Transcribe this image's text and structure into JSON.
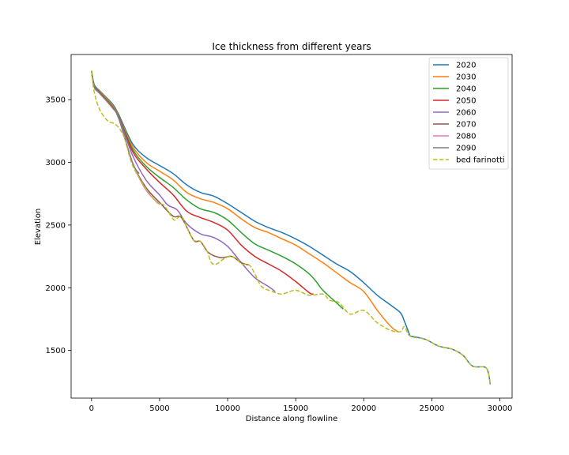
{
  "chart_data": {
    "type": "line",
    "title": "Ice thickness from different years",
    "xlabel": "Distance along flowline",
    "ylabel": "Elevation",
    "xlim": [
      -1500,
      30900
    ],
    "ylim": [
      1120,
      3860
    ],
    "xticks": [
      0,
      5000,
      10000,
      15000,
      20000,
      25000,
      30000
    ],
    "yticks": [
      1500,
      2000,
      2500,
      3000,
      3500
    ],
    "grid": false,
    "legend_position": "top-right",
    "bed_tail": [
      [
        23400,
        1615
      ],
      [
        24500,
        1590
      ],
      [
        25500,
        1535
      ],
      [
        26500,
        1510
      ],
      [
        27300,
        1460
      ],
      [
        28000,
        1375
      ],
      [
        29000,
        1360
      ],
      [
        29300,
        1230
      ]
    ],
    "series": [
      {
        "name": "2020",
        "color": "#1f77b4",
        "dash": false,
        "points": [
          [
            0,
            3730
          ],
          [
            200,
            3620
          ],
          [
            600,
            3570
          ],
          [
            1500,
            3470
          ],
          [
            2000,
            3380
          ],
          [
            3000,
            3150
          ],
          [
            4000,
            3040
          ],
          [
            5000,
            2975
          ],
          [
            6000,
            2910
          ],
          [
            7000,
            2820
          ],
          [
            8000,
            2760
          ],
          [
            9000,
            2730
          ],
          [
            10000,
            2670
          ],
          [
            11000,
            2600
          ],
          [
            12000,
            2530
          ],
          [
            13000,
            2480
          ],
          [
            14000,
            2440
          ],
          [
            15000,
            2390
          ],
          [
            16000,
            2330
          ],
          [
            17000,
            2260
          ],
          [
            18000,
            2190
          ],
          [
            19000,
            2130
          ],
          [
            20000,
            2040
          ],
          [
            21000,
            1940
          ],
          [
            22000,
            1860
          ],
          [
            22700,
            1800
          ],
          [
            23000,
            1730
          ],
          [
            23400,
            1615
          ]
        ]
      },
      {
        "name": "2030",
        "color": "#ff7f0e",
        "dash": false,
        "points": [
          [
            0,
            3730
          ],
          [
            200,
            3610
          ],
          [
            600,
            3565
          ],
          [
            1500,
            3460
          ],
          [
            2000,
            3370
          ],
          [
            3000,
            3130
          ],
          [
            4000,
            3000
          ],
          [
            5000,
            2930
          ],
          [
            6000,
            2860
          ],
          [
            7000,
            2760
          ],
          [
            8000,
            2710
          ],
          [
            9000,
            2680
          ],
          [
            10000,
            2630
          ],
          [
            11000,
            2550
          ],
          [
            12000,
            2480
          ],
          [
            13000,
            2440
          ],
          [
            14000,
            2390
          ],
          [
            15000,
            2340
          ],
          [
            16000,
            2270
          ],
          [
            17000,
            2200
          ],
          [
            18000,
            2120
          ],
          [
            19000,
            2040
          ],
          [
            20000,
            1970
          ],
          [
            21000,
            1820
          ],
          [
            22000,
            1690
          ],
          [
            22500,
            1650
          ]
        ]
      },
      {
        "name": "2040",
        "color": "#2ca02c",
        "dash": false,
        "points": [
          [
            0,
            3730
          ],
          [
            200,
            3610
          ],
          [
            600,
            3560
          ],
          [
            1500,
            3450
          ],
          [
            2000,
            3365
          ],
          [
            3000,
            3110
          ],
          [
            4000,
            2970
          ],
          [
            5000,
            2880
          ],
          [
            6000,
            2800
          ],
          [
            7000,
            2700
          ],
          [
            8000,
            2630
          ],
          [
            9000,
            2600
          ],
          [
            10000,
            2540
          ],
          [
            11000,
            2440
          ],
          [
            12000,
            2350
          ],
          [
            13000,
            2300
          ],
          [
            14000,
            2250
          ],
          [
            15000,
            2190
          ],
          [
            16000,
            2110
          ],
          [
            16500,
            2050
          ],
          [
            17000,
            1980
          ],
          [
            18000,
            1880
          ],
          [
            18500,
            1830
          ]
        ]
      },
      {
        "name": "2050",
        "color": "#d62728",
        "dash": false,
        "points": [
          [
            0,
            3730
          ],
          [
            200,
            3605
          ],
          [
            600,
            3555
          ],
          [
            1500,
            3445
          ],
          [
            2000,
            3360
          ],
          [
            3000,
            3090
          ],
          [
            4000,
            2950
          ],
          [
            5000,
            2840
          ],
          [
            6000,
            2740
          ],
          [
            7000,
            2610
          ],
          [
            8000,
            2560
          ],
          [
            9000,
            2520
          ],
          [
            10000,
            2460
          ],
          [
            11000,
            2340
          ],
          [
            12000,
            2250
          ],
          [
            13000,
            2190
          ],
          [
            14000,
            2130
          ],
          [
            15000,
            2050
          ],
          [
            16000,
            1960
          ],
          [
            16300,
            1950
          ]
        ]
      },
      {
        "name": "2060",
        "color": "#9467bd",
        "dash": false,
        "points": [
          [
            0,
            3730
          ],
          [
            200,
            3600
          ],
          [
            600,
            3550
          ],
          [
            1500,
            3440
          ],
          [
            2000,
            3355
          ],
          [
            3000,
            3060
          ],
          [
            4000,
            2860
          ],
          [
            5000,
            2740
          ],
          [
            5600,
            2660
          ],
          [
            6300,
            2620
          ],
          [
            7000,
            2510
          ],
          [
            8000,
            2430
          ],
          [
            9000,
            2400
          ],
          [
            10000,
            2330
          ],
          [
            11000,
            2200
          ],
          [
            12000,
            2080
          ],
          [
            13000,
            2010
          ],
          [
            13500,
            1970
          ]
        ]
      },
      {
        "name": "2070",
        "color": "#8c564b",
        "dash": false,
        "points": [
          [
            0,
            3730
          ],
          [
            200,
            3600
          ],
          [
            600,
            3550
          ],
          [
            1500,
            3440
          ],
          [
            2000,
            3350
          ],
          [
            3000,
            3000
          ],
          [
            4000,
            2800
          ],
          [
            5000,
            2680
          ],
          [
            6000,
            2570
          ],
          [
            6600,
            2560
          ],
          [
            7500,
            2380
          ],
          [
            8000,
            2370
          ],
          [
            8600,
            2280
          ],
          [
            9500,
            2240
          ],
          [
            10300,
            2250
          ],
          [
            11000,
            2200
          ],
          [
            11600,
            2180
          ]
        ]
      },
      {
        "name": "2080",
        "color": "#e377c2",
        "dash": false,
        "points": [
          [
            0,
            3730
          ],
          [
            200,
            3600
          ],
          [
            600,
            3550
          ],
          [
            1500,
            3440
          ],
          [
            2000,
            3350
          ],
          [
            3000,
            3000
          ],
          [
            4000,
            2780
          ],
          [
            5000,
            2665
          ]
        ]
      },
      {
        "name": "2090",
        "color": "#7f7f7f",
        "dash": false,
        "points": [
          [
            0,
            3730
          ],
          [
            200,
            3600
          ],
          [
            600,
            3550
          ],
          [
            1500,
            3440
          ],
          [
            2000,
            3350
          ],
          [
            3000,
            3000
          ],
          [
            3500,
            2910
          ]
        ]
      },
      {
        "name": "bed farinotti",
        "color": "#bcbd22",
        "dash": true,
        "points": [
          [
            0,
            3730
          ],
          [
            200,
            3560
          ],
          [
            600,
            3420
          ],
          [
            1200,
            3330
          ],
          [
            1800,
            3300
          ],
          [
            2400,
            3200
          ],
          [
            3000,
            2980
          ],
          [
            4000,
            2790
          ],
          [
            4800,
            2680
          ],
          [
            5300,
            2660
          ],
          [
            5800,
            2580
          ],
          [
            6100,
            2540
          ],
          [
            6600,
            2570
          ],
          [
            7000,
            2480
          ],
          [
            7500,
            2380
          ],
          [
            8000,
            2370
          ],
          [
            8500,
            2290
          ],
          [
            8800,
            2200
          ],
          [
            9200,
            2190
          ],
          [
            9700,
            2230
          ],
          [
            10200,
            2250
          ],
          [
            10700,
            2230
          ],
          [
            11000,
            2190
          ],
          [
            11600,
            2180
          ],
          [
            12000,
            2110
          ],
          [
            12500,
            2010
          ],
          [
            13300,
            1970
          ],
          [
            14000,
            1950
          ],
          [
            15000,
            1980
          ],
          [
            16000,
            1940
          ],
          [
            17000,
            1950
          ],
          [
            17500,
            1900
          ],
          [
            18200,
            1880
          ],
          [
            19000,
            1790
          ],
          [
            20000,
            1820
          ],
          [
            21000,
            1720
          ],
          [
            22000,
            1660
          ],
          [
            22700,
            1650
          ],
          [
            23000,
            1690
          ],
          [
            23400,
            1615
          ],
          [
            24500,
            1590
          ],
          [
            25500,
            1535
          ],
          [
            26500,
            1510
          ],
          [
            27300,
            1460
          ],
          [
            28000,
            1375
          ],
          [
            29000,
            1360
          ],
          [
            29300,
            1230
          ]
        ]
      }
    ]
  }
}
